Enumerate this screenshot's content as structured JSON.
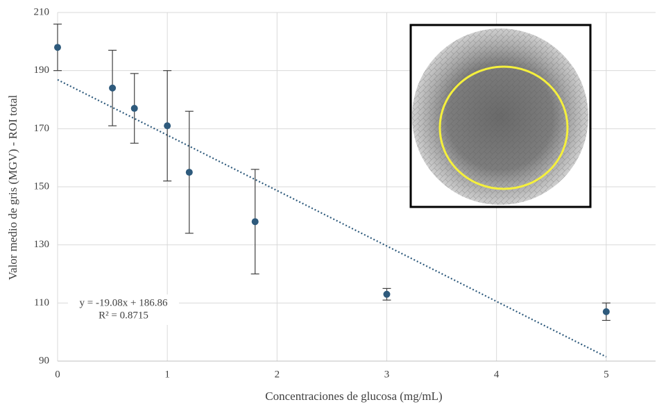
{
  "chart_data": {
    "type": "scatter",
    "x_label": "Concentraciones de glucosa (mg/mL)",
    "y_label": "Valor medio de gris (MGV) - ROI total",
    "x": [
      0,
      0.5,
      0.7,
      1,
      1.2,
      1.8,
      3,
      5
    ],
    "values": [
      198,
      184,
      177,
      171,
      155,
      138,
      113,
      107
    ],
    "errors": [
      8,
      13,
      12,
      19,
      21,
      18,
      2,
      3
    ],
    "color": "#2e5a7c",
    "xlim": [
      0,
      5.45
    ],
    "xticks": [
      0,
      1,
      2,
      3,
      4,
      5
    ],
    "ylim": [
      90,
      210
    ],
    "yticks": [
      90,
      110,
      130,
      150,
      170,
      190,
      210
    ],
    "grid": true,
    "trendline": {
      "slope": -19.08,
      "intercept": 186.86,
      "x_range": [
        0,
        5
      ],
      "color": "#2e5a7c",
      "equation": "y = -19.08x + 186.86",
      "r_squared": "R² = 0.8715"
    }
  }
}
